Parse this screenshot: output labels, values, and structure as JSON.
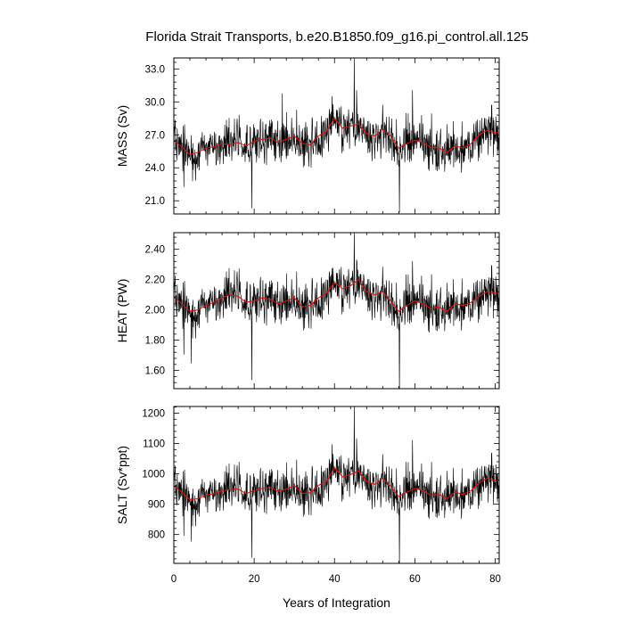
{
  "title": "Florida Strait Transports, b.e20.B1850.f09_g16.pi_control.all.125",
  "colors": {
    "raw": "#000000",
    "smooth": "#e01010",
    "frame": "#000000"
  },
  "chart_data": [
    {
      "type": "line",
      "title": "Florida Strait Transports, b.e20.B1850.f09_g16.pi_control.all.125",
      "ylabel": "MASS (Sv)",
      "xlabel": "",
      "xlim": [
        0,
        81
      ],
      "ylim": [
        19.8,
        34.0
      ],
      "yticks": [
        21.0,
        24.0,
        27.0,
        30.0,
        33.0
      ],
      "ytick_labels": [
        "21.0",
        "24.0",
        "27.0",
        "30.0",
        "33.0"
      ],
      "xticks": [
        0,
        20,
        40,
        60,
        80
      ],
      "grid": false,
      "mean": 26.3,
      "spread": 1.9,
      "spikes": [
        [
          19.4,
          -0.92
        ],
        [
          39.4,
          0.55
        ],
        [
          44.9,
          1.0
        ],
        [
          45.5,
          0.62
        ],
        [
          56.2,
          -0.98
        ],
        [
          59.4,
          0.62
        ],
        [
          2.5,
          -0.62
        ],
        [
          27.0,
          0.58
        ]
      ],
      "series": [
        {
          "values": [
            [
              0,
              26.5
            ],
            [
              2,
              25.9
            ],
            [
              4,
              25.2
            ],
            [
              6,
              25.4
            ],
            [
              8,
              25.8
            ],
            [
              10,
              25.9
            ],
            [
              12,
              26.2
            ],
            [
              14,
              26.1
            ],
            [
              16,
              26.3
            ],
            [
              18,
              26.0
            ],
            [
              20,
              26.4
            ],
            [
              22,
              26.6
            ],
            [
              24,
              26.7
            ],
            [
              26,
              26.3
            ],
            [
              28,
              26.6
            ],
            [
              30,
              26.9
            ],
            [
              32,
              26.2
            ],
            [
              34,
              26.1
            ],
            [
              36,
              26.9
            ],
            [
              38,
              27.3
            ],
            [
              40,
              28.5
            ],
            [
              42,
              27.6
            ],
            [
              44,
              27.8
            ],
            [
              46,
              28.0
            ],
            [
              48,
              27.1
            ],
            [
              50,
              26.9
            ],
            [
              52,
              27.5
            ],
            [
              54,
              26.9
            ],
            [
              56,
              25.8
            ],
            [
              58,
              26.2
            ],
            [
              60,
              26.5
            ],
            [
              62,
              26.3
            ],
            [
              64,
              25.9
            ],
            [
              66,
              25.8
            ],
            [
              68,
              25.4
            ],
            [
              70,
              26.0
            ],
            [
              72,
              25.8
            ],
            [
              74,
              26.2
            ],
            [
              76,
              27.0
            ],
            [
              78,
              27.4
            ],
            [
              80,
              27.2
            ]
          ]
        }
      ]
    },
    {
      "type": "line",
      "ylabel": "HEAT (PW)",
      "xlabel": "",
      "xlim": [
        0,
        81
      ],
      "ylim": [
        1.48,
        2.51
      ],
      "yticks": [
        1.6,
        1.8,
        2.0,
        2.2,
        2.4
      ],
      "ytick_labels": [
        "1.60",
        "1.80",
        "2.00",
        "2.20",
        "2.40"
      ],
      "xticks": [
        0,
        20,
        40,
        60,
        80
      ],
      "grid": false,
      "mean": 2.04,
      "spread": 0.14,
      "spikes": [
        [
          19.4,
          -0.9
        ],
        [
          39.4,
          0.5
        ],
        [
          44.9,
          1.0
        ],
        [
          45.5,
          0.62
        ],
        [
          56.2,
          -1.05
        ],
        [
          59.4,
          0.6
        ],
        [
          2.5,
          -0.6
        ],
        [
          4.3,
          -0.7
        ]
      ],
      "series": [
        {
          "values": [
            [
              0,
              2.09
            ],
            [
              2,
              2.04
            ],
            [
              4,
              1.99
            ],
            [
              6,
              2.0
            ],
            [
              8,
              2.03
            ],
            [
              10,
              2.05
            ],
            [
              12,
              2.08
            ],
            [
              14,
              2.1
            ],
            [
              16,
              2.09
            ],
            [
              18,
              2.05
            ],
            [
              20,
              2.06
            ],
            [
              22,
              2.08
            ],
            [
              24,
              2.07
            ],
            [
              26,
              2.04
            ],
            [
              28,
              2.06
            ],
            [
              30,
              2.08
            ],
            [
              32,
              2.02
            ],
            [
              34,
              2.03
            ],
            [
              36,
              2.08
            ],
            [
              38,
              2.11
            ],
            [
              40,
              2.18
            ],
            [
              42,
              2.14
            ],
            [
              44,
              2.16
            ],
            [
              46,
              2.2
            ],
            [
              48,
              2.12
            ],
            [
              50,
              2.1
            ],
            [
              52,
              2.12
            ],
            [
              54,
              2.06
            ],
            [
              56,
              1.99
            ],
            [
              58,
              2.03
            ],
            [
              60,
              2.06
            ],
            [
              62,
              2.04
            ],
            [
              64,
              2.01
            ],
            [
              66,
              2.02
            ],
            [
              68,
              1.99
            ],
            [
              70,
              2.04
            ],
            [
              72,
              2.03
            ],
            [
              74,
              2.05
            ],
            [
              76,
              2.09
            ],
            [
              78,
              2.12
            ],
            [
              80,
              2.11
            ]
          ]
        }
      ]
    },
    {
      "type": "line",
      "ylabel": "SALT (Sv*ppt)",
      "xlabel": "Years of Integration",
      "xlim": [
        0,
        81
      ],
      "ylim": [
        705,
        1222
      ],
      "yticks": [
        800,
        900,
        1000,
        1100,
        1200
      ],
      "ytick_labels": [
        "800",
        "900",
        "1000",
        "1100",
        "1200"
      ],
      "xticks": [
        0,
        20,
        40,
        60,
        80
      ],
      "xtick_labels": [
        "0",
        "20",
        "40",
        "60",
        "80"
      ],
      "grid": false,
      "mean": 945,
      "spread": 68,
      "spikes": [
        [
          19.4,
          -0.92
        ],
        [
          39.4,
          0.55
        ],
        [
          44.9,
          1.0
        ],
        [
          45.5,
          0.62
        ],
        [
          56.2,
          -1.0
        ],
        [
          59.4,
          0.6
        ],
        [
          2.5,
          -0.62
        ],
        [
          4.3,
          -0.7
        ]
      ],
      "series": [
        {
          "values": [
            [
              0,
              960
            ],
            [
              2,
              940
            ],
            [
              4,
              915
            ],
            [
              6,
              918
            ],
            [
              8,
              930
            ],
            [
              10,
              935
            ],
            [
              12,
              945
            ],
            [
              14,
              948
            ],
            [
              16,
              950
            ],
            [
              18,
              935
            ],
            [
              20,
              945
            ],
            [
              22,
              952
            ],
            [
              24,
              955
            ],
            [
              26,
              942
            ],
            [
              28,
              950
            ],
            [
              30,
              962
            ],
            [
              32,
              935
            ],
            [
              34,
              938
            ],
            [
              36,
              962
            ],
            [
              38,
              975
            ],
            [
              40,
              1020
            ],
            [
              42,
              990
            ],
            [
              44,
              998
            ],
            [
              46,
              1010
            ],
            [
              48,
              975
            ],
            [
              50,
              965
            ],
            [
              52,
              985
            ],
            [
              54,
              960
            ],
            [
              56,
              925
            ],
            [
              58,
              940
            ],
            [
              60,
              952
            ],
            [
              62,
              945
            ],
            [
              64,
              930
            ],
            [
              66,
              932
            ],
            [
              68,
              918
            ],
            [
              70,
              940
            ],
            [
              72,
              932
            ],
            [
              74,
              945
            ],
            [
              76,
              970
            ],
            [
              78,
              985
            ],
            [
              80,
              978
            ]
          ]
        }
      ]
    }
  ]
}
